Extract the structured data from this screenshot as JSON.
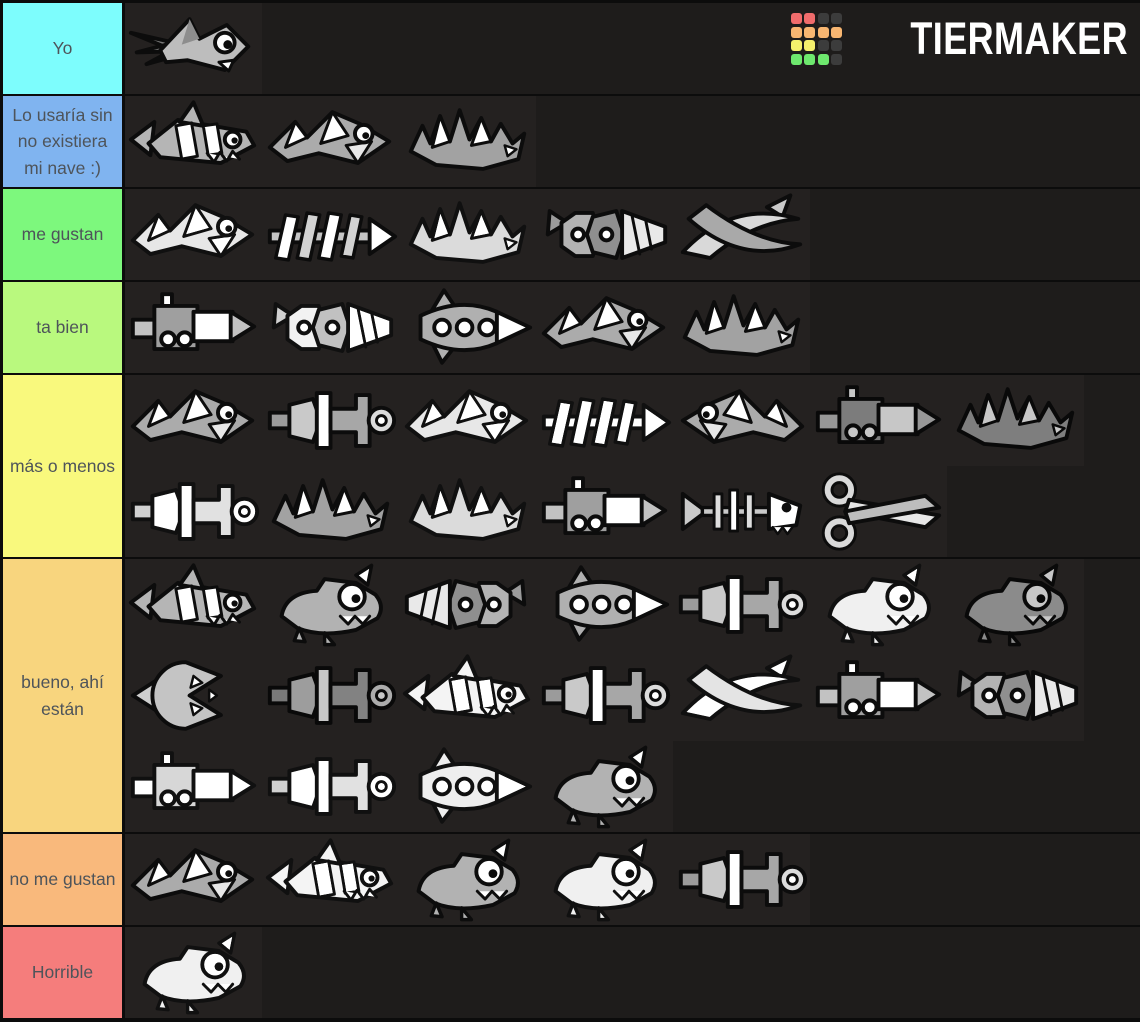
{
  "board": {
    "background": "#1e1c1b",
    "item_cell_background": "#242120",
    "grid_line_color": "#0c0c0c",
    "label_text_color": "#4e545a"
  },
  "logo": {
    "title": "TIERMAKER",
    "grid": [
      "red",
      "red",
      "dark",
      "dark",
      "orange",
      "orange",
      "orange",
      "orange",
      "yellow",
      "yellow",
      "dark",
      "dark",
      "green",
      "green",
      "green",
      "dark"
    ],
    "palette": {
      "red": "#f06c6c",
      "orange": "#f8b671",
      "yellow": "#f5f06c",
      "green": "#6ee86e",
      "dark": "#3c3c3c"
    }
  },
  "icons": {
    "fish": "fish-ship-icon",
    "shark": "striped-shark-ship-icon",
    "poly": "angular-shark-ship-icon",
    "spiky": "spiky-dragon-ship-icon",
    "ribs": "fishbone-blade-ship-icon",
    "rocket": "porthole-submarine-ship-icon",
    "blocky": "block-tank-ship-icon",
    "drill": "drill-ship-icon",
    "blades": "curved-blade-ship-icon",
    "scissors": "scissors-ship-icon",
    "pacman": "chomper-drill-ship-icon",
    "critter": "goofy-creature-ship-icon",
    "bone": "fish-skeleton-ship-icon",
    "mech": "mech-wrench-ship-icon"
  },
  "tiers": [
    {
      "label": "Yo",
      "color": "#7dfdfd",
      "items": [
        {
          "shape": "fish"
        }
      ]
    },
    {
      "label": "Lo usaría sin no existiera mi nave :)",
      "color": "#80b4f0",
      "items": [
        {
          "shape": "shark"
        },
        {
          "shape": "poly"
        },
        {
          "shape": "spiky"
        }
      ]
    },
    {
      "label": "me gustan",
      "color": "#7df87d",
      "items": [
        {
          "shape": "poly",
          "variant": "light"
        },
        {
          "shape": "ribs"
        },
        {
          "shape": "spiky",
          "variant": "light"
        },
        {
          "shape": "drill"
        },
        {
          "shape": "blades"
        }
      ]
    },
    {
      "label": "ta bien",
      "color": "#b9f97e",
      "items": [
        {
          "shape": "blocky"
        },
        {
          "shape": "drill",
          "variant": "light"
        },
        {
          "shape": "rocket"
        },
        {
          "shape": "poly"
        },
        {
          "shape": "spiky"
        }
      ]
    },
    {
      "label": "más o menos",
      "color": "#f9f97d",
      "items": [
        {
          "shape": "poly"
        },
        {
          "shape": "mech"
        },
        {
          "shape": "poly",
          "variant": "light"
        },
        {
          "shape": "ribs",
          "variant": "light"
        },
        {
          "shape": "poly",
          "variant": "flip"
        },
        {
          "shape": "blocky",
          "variant": "dark"
        },
        {
          "shape": "spiky",
          "variant": "dark"
        },
        {
          "shape": "mech",
          "variant": "light"
        },
        {
          "shape": "spiky"
        },
        {
          "shape": "spiky",
          "variant": "light"
        },
        {
          "shape": "blocky"
        },
        {
          "shape": "bone"
        },
        {
          "shape": "scissors"
        }
      ]
    },
    {
      "label": "bueno, ahí están",
      "color": "#f8d57e",
      "items": [
        {
          "shape": "shark"
        },
        {
          "shape": "critter"
        },
        {
          "shape": "drill",
          "variant": "flip"
        },
        {
          "shape": "rocket"
        },
        {
          "shape": "mech"
        },
        {
          "shape": "critter",
          "variant": "light"
        },
        {
          "shape": "critter",
          "variant": "dark"
        },
        {
          "shape": "pacman"
        },
        {
          "shape": "mech",
          "variant": "dark"
        },
        {
          "shape": "shark",
          "variant": "light"
        },
        {
          "shape": "mech"
        },
        {
          "shape": "blades",
          "variant": "light"
        },
        {
          "shape": "blocky"
        },
        {
          "shape": "drill"
        },
        {
          "shape": "blocky",
          "variant": "light"
        },
        {
          "shape": "mech",
          "variant": "light"
        },
        {
          "shape": "rocket",
          "variant": "light"
        },
        {
          "shape": "critter"
        }
      ]
    },
    {
      "label": "no me gustan",
      "color": "#f9b97c",
      "items": [
        {
          "shape": "poly"
        },
        {
          "shape": "shark",
          "variant": "light"
        },
        {
          "shape": "critter"
        },
        {
          "shape": "critter",
          "variant": "light"
        },
        {
          "shape": "mech"
        }
      ]
    },
    {
      "label": "Horrible",
      "color": "#f57d7c",
      "items": [
        {
          "shape": "critter",
          "variant": "light"
        }
      ]
    }
  ]
}
